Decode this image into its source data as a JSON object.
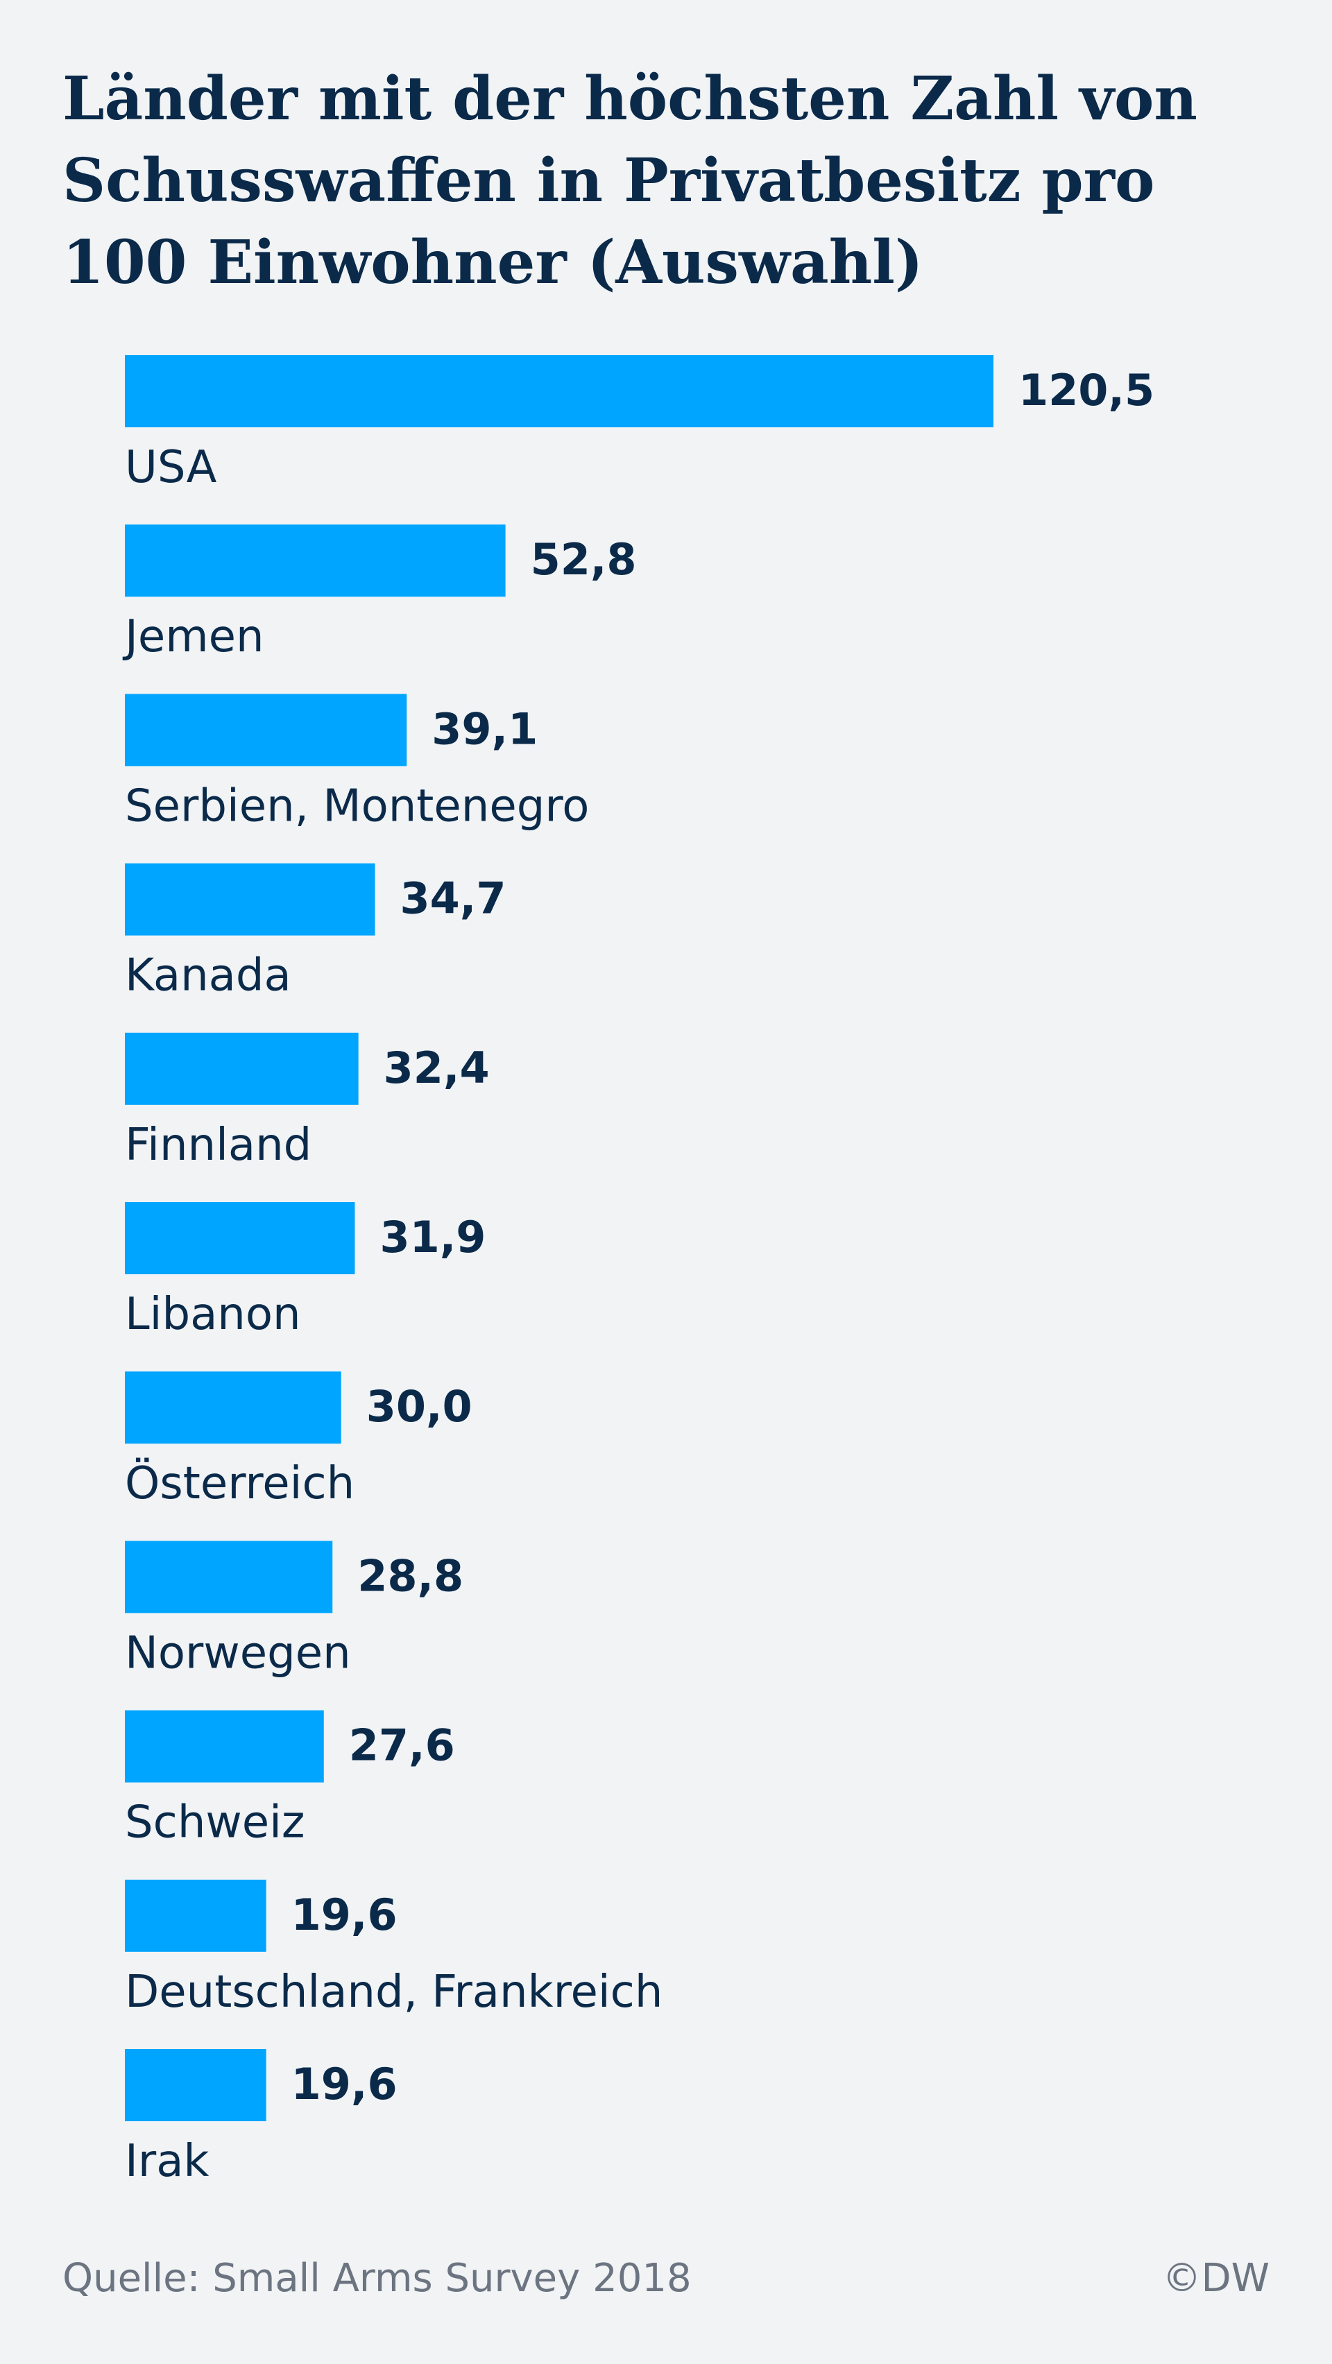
{
  "chart_data": {
    "type": "bar",
    "orientation": "horizontal",
    "title": "Länder mit der höchsten Zahl von Schusswaffen in Privatbesitz pro 100 Einwohner (Auswahl)",
    "categories": [
      "USA",
      "Jemen",
      "Serbien, Montenegro",
      "Kanada",
      "Finnland",
      "Libanon",
      "Österreich",
      "Norwegen",
      "Schweiz",
      "Deutschland, Frankreich",
      "Irak"
    ],
    "values": [
      120.5,
      52.8,
      39.1,
      34.7,
      32.4,
      31.9,
      30.0,
      28.8,
      27.6,
      19.6,
      19.6
    ],
    "value_labels": [
      "120,5",
      "52,8",
      "39,1",
      "34,7",
      "32,4",
      "31,9",
      "30,0",
      "28,8",
      "27,6",
      "19,6",
      "19,6"
    ],
    "bar_color": "#00a5ff",
    "grid": false,
    "legend": "none",
    "xlim": [
      0,
      120.5
    ]
  },
  "footer": {
    "source": "Quelle: Small Arms Survey 2018",
    "credit": "©DW"
  }
}
